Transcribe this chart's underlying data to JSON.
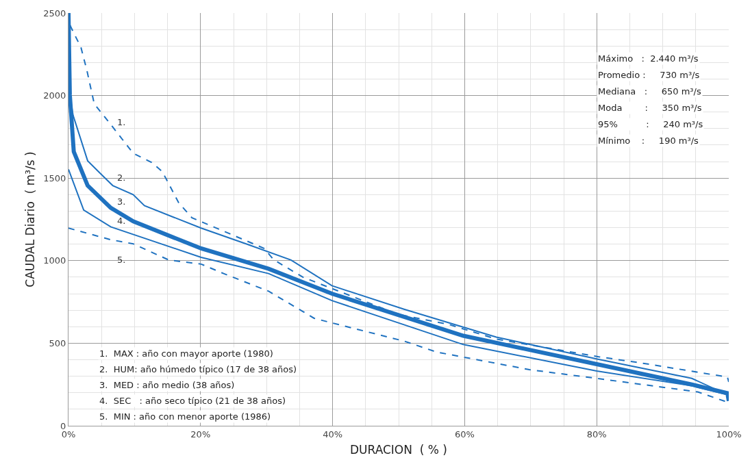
{
  "chart_data": {
    "type": "line",
    "xlabel": "DURACION  ( % )",
    "ylabel": "CAUDAL Diario  ( m³/s )",
    "xlim": [
      0,
      100
    ],
    "ylim": [
      0,
      2500
    ],
    "xticks": [
      {
        "value": 0,
        "label": "0%"
      },
      {
        "value": 20,
        "label": "20%"
      },
      {
        "value": 40,
        "label": "40%"
      },
      {
        "value": 60,
        "label": "60%"
      },
      {
        "value": 80,
        "label": "80%"
      },
      {
        "value": 100,
        "label": "100%"
      }
    ],
    "yticks": [
      0,
      500,
      1000,
      1500,
      2000,
      2500
    ],
    "grid": true,
    "legend": false,
    "marker": "none",
    "series": [
      {
        "name": "1.",
        "color": "#1f72c0",
        "line_style": "dashed",
        "x": [
          0,
          0.3,
          1.9,
          2.8,
          3.9,
          6.4,
          9.8,
          12.6,
          14.2,
          16.7,
          18.7,
          29.6,
          31.1,
          35.5,
          49.9,
          57.5,
          64.8,
          80.3,
          86.8,
          99.8,
          100
        ],
        "values": [
          2500,
          2420,
          2290,
          2150,
          1950,
          1825,
          1650,
          1595,
          1540,
          1350,
          1260,
          1075,
          1005,
          900,
          675,
          615,
          525,
          418,
          380,
          295,
          265
        ]
      },
      {
        "name": "2.",
        "color": "#1f72c0",
        "line_style": "solid",
        "x": [
          0,
          0.7,
          2.9,
          4.6,
          6.7,
          9.8,
          11.5,
          20.1,
          26.9,
          33.7,
          39.9,
          50.9,
          64.8,
          80.3,
          94.4,
          99.8,
          100
        ],
        "values": [
          2050,
          1880,
          1605,
          1537,
          1455,
          1400,
          1333,
          1197,
          1102,
          1004,
          848,
          705,
          537,
          402,
          287,
          188,
          160
        ]
      },
      {
        "name": "3.",
        "color": "#1f72c0",
        "line_style": "solid",
        "x": [
          0,
          0.2,
          0.8,
          2.9,
          6.4,
          9.8,
          20.1,
          30.3,
          39.9,
          59.8,
          80,
          94.4,
          99.8,
          100
        ],
        "values": [
          2500,
          2004,
          1660,
          1455,
          1320,
          1238,
          1074,
          951,
          800,
          545,
          373,
          250,
          197,
          150
        ]
      },
      {
        "name": "4.",
        "color": "#1f72c0",
        "line_style": "solid",
        "x": [
          0,
          2.3,
          6.4,
          20.1,
          30.3,
          39.9,
          59.8,
          80,
          94.4,
          99.8,
          100
        ],
        "values": [
          1553,
          1307,
          1205,
          1020,
          922,
          758,
          492,
          332,
          242,
          188,
          160
        ]
      },
      {
        "name": "5.",
        "color": "#1f72c0",
        "line_style": "dashed",
        "x": [
          0,
          6.4,
          9.8,
          15.2,
          20.1,
          23.5,
          30.3,
          35.5,
          37.2,
          39.9,
          50.9,
          55.7,
          69.8,
          80,
          95.3,
          99.8
        ],
        "values": [
          1197,
          1127,
          1102,
          1004,
          979,
          922,
          815,
          692,
          651,
          623,
          512,
          447,
          340,
          287,
          205,
          143
        ]
      }
    ],
    "annotations": [
      "Máximo   :  2.440 m³/s",
      "Promedio :     730 m³/s",
      "Mediana   :     650 m³/s",
      "Moda        :     350 m³/s",
      "95%          :     240 m³/s",
      "Mínimo    :     190 m³/s",
      "1.  MAX : año con mayor aporte (1980)",
      "2.  HUM: año húmedo típico (17 de 38 años)",
      "3.  MED : año medio (38 años)",
      "4.  SEC   : año seco típico (21 de 38 años)",
      "5.  MIN : año con menor aporte (1986)"
    ]
  }
}
